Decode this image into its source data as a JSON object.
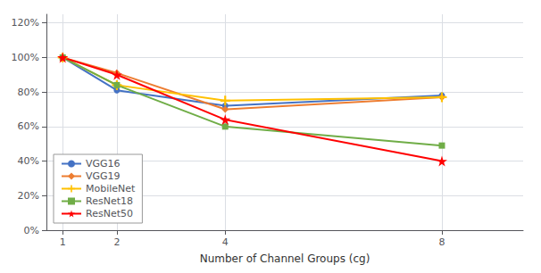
{
  "chart_data": {
    "type": "line",
    "x": [
      1,
      2,
      4,
      8
    ],
    "series": [
      {
        "name": "VGG16",
        "color": "#4472C4",
        "marker": "circle",
        "values": [
          1.0,
          0.81,
          0.72,
          0.78
        ]
      },
      {
        "name": "VGG19",
        "color": "#ED7D31",
        "marker": "diamond",
        "values": [
          1.0,
          0.91,
          0.7,
          0.77
        ]
      },
      {
        "name": "MobileNet",
        "color": "#FFC000",
        "marker": "plus",
        "values": [
          1.0,
          0.84,
          0.75,
          0.77
        ]
      },
      {
        "name": "ResNet18",
        "color": "#70AD47",
        "marker": "square",
        "values": [
          1.0,
          0.84,
          0.6,
          0.49
        ]
      },
      {
        "name": "ResNet50",
        "color": "#FF0000",
        "marker": "star",
        "values": [
          1.0,
          0.9,
          0.64,
          0.4
        ]
      }
    ],
    "xlabel": "Number of Channel Groups (cg)",
    "xlim": [
      0.7,
      9.5
    ],
    "ylim": [
      0.0,
      1.25
    ],
    "xticks": [
      1,
      2,
      4,
      8
    ],
    "yticks": [
      {
        "value": 0.0,
        "label": "0%"
      },
      {
        "value": 0.2,
        "label": "20%"
      },
      {
        "value": 0.4,
        "label": "40%"
      },
      {
        "value": 0.6,
        "label": "60%"
      },
      {
        "value": 0.8,
        "label": "80%"
      },
      {
        "value": 1.0,
        "label": "100%"
      },
      {
        "value": 1.2,
        "label": "120%"
      }
    ],
    "grid": true,
    "legend": "lower left"
  }
}
